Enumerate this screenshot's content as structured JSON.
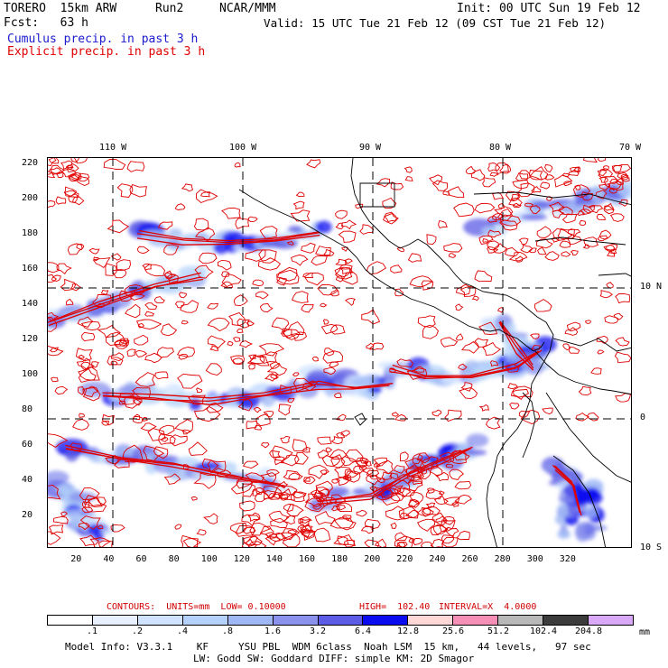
{
  "header": {
    "model": "TORERO  15km ARW",
    "run": "Run2",
    "org": "NCAR/MMM",
    "init": "Init: 00 UTC Sun 19 Feb 12",
    "fcst": "Fcst:   63 h",
    "valid": "Valid: 15 UTC Tue 21 Feb 12 (09 CST Tue 21 Feb 12)",
    "field1": "Cumulus precip. in past 3 h",
    "field2": "Explicit precip. in past 3 h",
    "field1_color": "#1a1ad0",
    "field2_color": "#e00000"
  },
  "map": {
    "top_lon_labels": [
      "110 W",
      "100 W",
      "90 W",
      "80 W",
      "70 W"
    ],
    "right_lat_labels": [
      "10 N",
      "0",
      "10 S"
    ],
    "left_y_ticks": [
      "220",
      "200",
      "180",
      "160",
      "140",
      "120",
      "100",
      "80",
      "60",
      "40",
      "20"
    ],
    "bottom_x_ticks": [
      "20",
      "40",
      "60",
      "80",
      "100",
      "120",
      "140",
      "160",
      "180",
      "200",
      "220",
      "240",
      "260",
      "280",
      "300",
      "320"
    ],
    "explicit_contour_color": "#e00000",
    "coast_color": "#000000"
  },
  "contours": {
    "label": "CONTOURS:  UNITS=mm  LOW= 0.10000",
    "high": "HIGH=  102.40",
    "interval": "INTERVAL=X  4.0000"
  },
  "legend": {
    "unit": "mm",
    "ticks": [
      ".1",
      ".2",
      ".4",
      ".8",
      "1.6",
      "3.2",
      "6.4",
      "12.8",
      "25.6",
      "51.2",
      "102.4",
      "204.8"
    ],
    "colors": [
      "#ffffff",
      "#e8f0ff",
      "#cfe2ff",
      "#b3d1fa",
      "#9fb8f5",
      "#8a92ee",
      "#5c5ce6",
      "#0b0bf0",
      "#ffd7d7",
      "#f68fb6",
      "#b8b8b8",
      "#3c3c3c",
      "#d9a8f7"
    ]
  },
  "footer": {
    "line1": "Model Info: V3.3.1    KF     YSU PBL  WDM 6class  Noah LSM  15 km,   44 levels,   97 sec",
    "line2": "LW: Godd SW: Goddard DIFF: simple KM: 2D Smagor"
  }
}
